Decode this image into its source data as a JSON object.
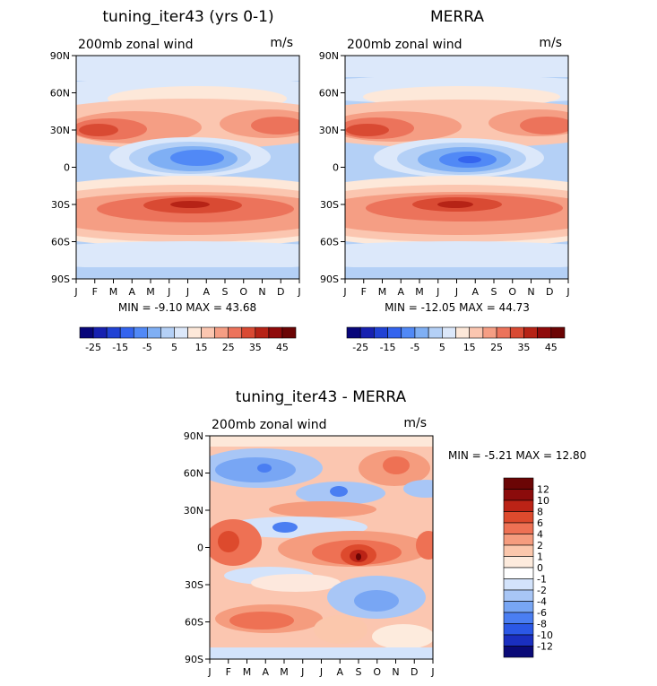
{
  "chart_data": [
    {
      "type": "heatmap",
      "title": "tuning_iter43 (yrs 0-1)",
      "left_label": "200mb zonal wind",
      "right_label": "m/s",
      "x_ticks": [
        "J",
        "F",
        "M",
        "A",
        "M",
        "J",
        "J",
        "A",
        "S",
        "O",
        "N",
        "D",
        "J"
      ],
      "y_ticks": [
        "90N",
        "60N",
        "30N",
        "0",
        "30S",
        "60S",
        "90S"
      ],
      "ylim": [
        -90,
        90
      ],
      "stats_text": "MIN =   -9.10  MAX =   43.68",
      "min": -9.1,
      "max": 43.68,
      "colorbar": {
        "orientation": "horizontal",
        "levels": [
          -25,
          -20,
          -15,
          -10,
          -5,
          0,
          5,
          10,
          15,
          20,
          25,
          30,
          35,
          40,
          45
        ],
        "tick_labels": [
          "-25",
          "-15",
          "-5",
          "5",
          "15",
          "25",
          "35",
          "45"
        ]
      }
    },
    {
      "type": "heatmap",
      "title": "MERRA",
      "left_label": "200mb zonal wind",
      "right_label": "m/s",
      "x_ticks": [
        "J",
        "F",
        "M",
        "A",
        "M",
        "J",
        "J",
        "A",
        "S",
        "O",
        "N",
        "D",
        "J"
      ],
      "y_ticks": [
        "90N",
        "60N",
        "30N",
        "0",
        "30S",
        "60S",
        "90S"
      ],
      "ylim": [
        -90,
        90
      ],
      "stats_text": "MIN =  -12.05  MAX =   44.73",
      "min": -12.05,
      "max": 44.73,
      "colorbar": {
        "orientation": "horizontal",
        "levels": [
          -25,
          -20,
          -15,
          -10,
          -5,
          0,
          5,
          10,
          15,
          20,
          25,
          30,
          35,
          40,
          45
        ],
        "tick_labels": [
          "-25",
          "-15",
          "-5",
          "5",
          "15",
          "25",
          "35",
          "45"
        ]
      }
    },
    {
      "type": "heatmap",
      "title": "tuning_iter43 - MERRA",
      "left_label": "200mb zonal wind",
      "right_label": "m/s",
      "x_ticks": [
        "J",
        "F",
        "M",
        "A",
        "M",
        "J",
        "J",
        "A",
        "S",
        "O",
        "N",
        "D",
        "J"
      ],
      "y_ticks": [
        "90N",
        "60N",
        "30N",
        "0",
        "30S",
        "60S",
        "90S"
      ],
      "ylim": [
        -90,
        90
      ],
      "stats_text": "MIN =   -5.21  MAX =   12.80",
      "min": -5.21,
      "max": 12.8,
      "colorbar": {
        "orientation": "vertical",
        "levels": [
          -12,
          -10,
          -8,
          -6,
          -4,
          -2,
          -1,
          0,
          1,
          2,
          4,
          6,
          8,
          10,
          12
        ],
        "tick_labels": [
          "12",
          "10",
          "8",
          "6",
          "4",
          "2",
          "1",
          "0",
          "-1",
          "-2",
          "-4",
          "-6",
          "-8",
          "-10",
          "-12"
        ]
      }
    }
  ],
  "palette": {
    "abs": [
      "#08067a",
      "#1721b0",
      "#2142d4",
      "#3464ee",
      "#5189f6",
      "#7faff4",
      "#b4d0f6",
      "#dce8fa",
      "#fde8d9",
      "#fbc6b0",
      "#f59e84",
      "#ec735b",
      "#d94a33",
      "#b62316",
      "#8f0a0a",
      "#6b0404"
    ],
    "diff": [
      "#0a0a78",
      "#1a2fc0",
      "#2b58e6",
      "#4a7ef2",
      "#78a6f4",
      "#a8c6f6",
      "#d3e3fb",
      "#ffffff",
      "#fdebdd",
      "#fbc7ac",
      "#f59c7e",
      "#ee7154",
      "#dd4a2d",
      "#bb2316",
      "#8b0b0b",
      "#6b0505"
    ]
  }
}
